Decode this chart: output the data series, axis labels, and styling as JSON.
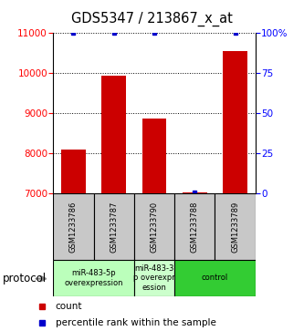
{
  "title": "GDS5347 / 213867_x_at",
  "samples": [
    "GSM1233786",
    "GSM1233787",
    "GSM1233790",
    "GSM1233788",
    "GSM1233789"
  ],
  "counts": [
    8100,
    9930,
    8870,
    7020,
    10550
  ],
  "percentiles": [
    100,
    100,
    100,
    1,
    100
  ],
  "ylim_left": [
    7000,
    11000
  ],
  "ylim_right": [
    0,
    100
  ],
  "yticks_left": [
    7000,
    8000,
    9000,
    10000,
    11000
  ],
  "yticks_right": [
    0,
    25,
    50,
    75,
    100
  ],
  "ytick_right_labels": [
    "0",
    "25",
    "50",
    "75",
    "100%"
  ],
  "bar_color": "#cc0000",
  "dot_color": "#0000cc",
  "sample_bg_color": "#c8c8c8",
  "proto_group1_color": "#bbffbb",
  "proto_group2_color": "#ccffcc",
  "proto_group3_color": "#33cc33",
  "legend_count_color": "#cc0000",
  "legend_pct_color": "#0000cc",
  "proto_groups": [
    {
      "start": 0,
      "end": 1,
      "label": "miR-483-5p\noverexpression"
    },
    {
      "start": 2,
      "end": 2,
      "label": "miR-483-3\np overexpr\nession"
    },
    {
      "start": 3,
      "end": 4,
      "label": "control"
    }
  ]
}
